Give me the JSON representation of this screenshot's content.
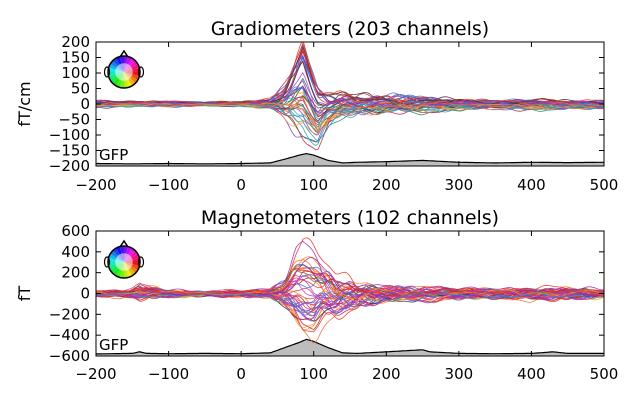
{
  "chart_data": [
    {
      "type": "line",
      "title": "Gradiometers (203 channels)",
      "ylabel": "fT/cm",
      "xlabel": "",
      "xlim": [
        -200,
        500
      ],
      "ylim": [
        -200,
        200
      ],
      "xticks": [
        -200,
        -100,
        0,
        100,
        200,
        300,
        400,
        500
      ],
      "yticks": [
        200,
        150,
        100,
        50,
        0,
        -50,
        -100,
        -150,
        -200
      ],
      "ytick_labels": [
        "200",
        "150",
        "100",
        "50",
        "0",
        "−50",
        "−100",
        "−150",
        "−200"
      ],
      "xtick_labels": [
        "−200",
        "−100",
        "0",
        "100",
        "200",
        "300",
        "400",
        "500"
      ],
      "gfp_label": "GFP",
      "gfp": {
        "x": [
          -200,
          -150,
          -100,
          -50,
          0,
          40,
          60,
          80,
          90,
          100,
          120,
          140,
          160,
          200,
          250,
          300,
          350,
          400,
          450,
          500
        ],
        "y": [
          -192,
          -193,
          -192,
          -193,
          -192,
          -190,
          -178,
          -165,
          -160,
          -165,
          -182,
          -190,
          -188,
          -186,
          -182,
          -188,
          -190,
          -188,
          -189,
          -188
        ]
      },
      "envelope": {
        "x": [
          -200,
          -150,
          -100,
          -50,
          0,
          40,
          60,
          75,
          85,
          95,
          105,
          120,
          140,
          160,
          200,
          250,
          300,
          350,
          400,
          450,
          500
        ],
        "upper": [
          15,
          10,
          12,
          8,
          10,
          20,
          70,
          150,
          195,
          120,
          60,
          40,
          45,
          40,
          35,
          25,
          20,
          15,
          20,
          15,
          15
        ],
        "lower": [
          -15,
          -10,
          -12,
          -8,
          -10,
          -20,
          -60,
          -90,
          -100,
          -120,
          -145,
          -80,
          -50,
          -45,
          -40,
          -30,
          -25,
          -20,
          -25,
          -20,
          -20
        ]
      },
      "series": []
    },
    {
      "type": "line",
      "title": "Magnetometers (102 channels)",
      "ylabel": "fT",
      "xlabel": "",
      "xlim": [
        -200,
        500
      ],
      "ylim": [
        -600,
        600
      ],
      "xticks": [
        -200,
        -100,
        0,
        100,
        200,
        300,
        400,
        500
      ],
      "yticks": [
        600,
        400,
        200,
        0,
        -200,
        -400,
        -600
      ],
      "ytick_labels": [
        "600",
        "400",
        "200",
        "0",
        "−200",
        "−400",
        "−600"
      ],
      "xtick_labels": [
        "−200",
        "−100",
        "0",
        "100",
        "200",
        "300",
        "400",
        "500"
      ],
      "gfp_label": "GFP",
      "gfp": {
        "x": [
          -200,
          -150,
          -140,
          -130,
          -100,
          -50,
          0,
          40,
          60,
          80,
          90,
          100,
          120,
          140,
          160,
          200,
          250,
          260,
          300,
          350,
          400,
          430,
          450,
          500
        ],
        "y": [
          -580,
          -575,
          -560,
          -575,
          -578,
          -575,
          -578,
          -570,
          -520,
          -470,
          -440,
          -460,
          -520,
          -570,
          -575,
          -560,
          -540,
          -560,
          -575,
          -578,
          -575,
          -560,
          -575,
          -575
        ]
      },
      "envelope": {
        "x": [
          -200,
          -150,
          -140,
          -100,
          -50,
          0,
          40,
          60,
          75,
          85,
          100,
          110,
          130,
          160,
          200,
          250,
          300,
          350,
          400,
          450,
          500
        ],
        "upper": [
          40,
          60,
          120,
          50,
          40,
          45,
          60,
          200,
          480,
          550,
          500,
          450,
          280,
          150,
          120,
          100,
          80,
          70,
          90,
          80,
          60
        ],
        "lower": [
          -40,
          -60,
          -90,
          -50,
          -40,
          -45,
          -60,
          -180,
          -300,
          -380,
          -420,
          -350,
          -300,
          -200,
          -120,
          -100,
          -80,
          -70,
          -90,
          -80,
          -60
        ]
      },
      "series": []
    }
  ]
}
